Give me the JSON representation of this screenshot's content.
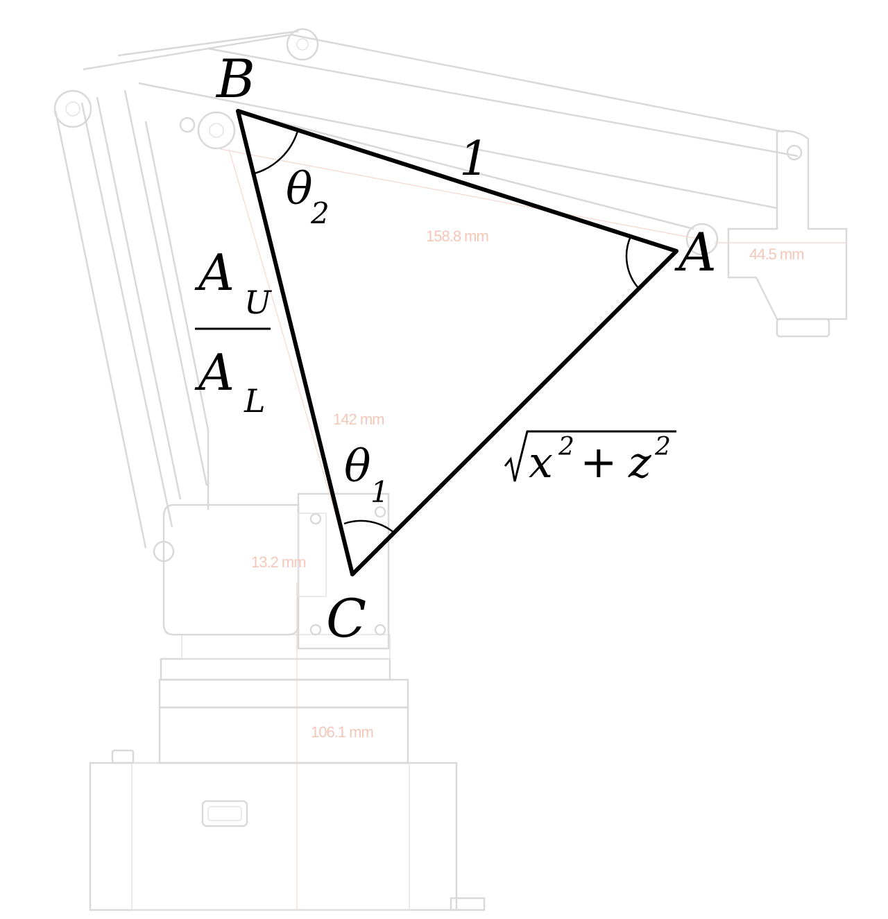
{
  "vertices": {
    "a": "A",
    "b": "B",
    "c": "C"
  },
  "sides": {
    "ba": "1",
    "bc_numerator": "A",
    "bc_numerator_sub": "U",
    "bc_denominator": "A",
    "bc_denominator_sub": "L",
    "ca_radical_x": "x",
    "ca_radical_exp1": "2",
    "ca_radical_plus": "+",
    "ca_radical_z": "z",
    "ca_radical_exp2": "2"
  },
  "angles": {
    "theta2": "θ",
    "theta2_sub": "2",
    "theta1": "θ",
    "theta1_sub": "1"
  },
  "background_dimensions": {
    "upper_arm": "158.8 mm",
    "end_effector": "44.5 mm",
    "lower_arm": "142 mm",
    "joint_offset": "13.2 mm",
    "base_height": "106.1 mm"
  },
  "colors": {
    "triangle": "#000000",
    "ghost_drawing": "#d9d9d9",
    "dimension_text": "#f4c7b8"
  }
}
